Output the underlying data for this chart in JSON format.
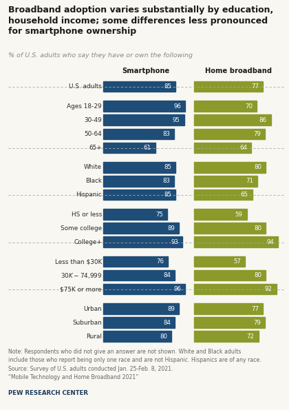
{
  "title": "Broadband adoption varies substantially by education,\nhousehold income; some differences less pronounced\nfor smartphone ownership",
  "subtitle": "% of U.S. adults who say they have or own the following",
  "col_labels": [
    "Smartphone",
    "Home broadband"
  ],
  "note": "Note: Respondents who did not give an answer are not shown. White and Black adults\ninclude those who report being only one race and are not Hispanic. Hispanics are of any race.\nSource: Survey of U.S. adults conducted Jan. 25-Feb. 8, 2021.\n“Mobile Technology and Home Broadband 2021”",
  "source_label": "PEW RESEARCH CENTER",
  "groups": [
    {
      "rows": [
        {
          "category": "U.S. adults",
          "smartphone": 85,
          "broadband": 77
        }
      ]
    },
    {
      "rows": [
        {
          "category": "Ages 18-29",
          "smartphone": 96,
          "broadband": 70
        },
        {
          "category": "30-49",
          "smartphone": 95,
          "broadband": 86
        },
        {
          "category": "50-64",
          "smartphone": 83,
          "broadband": 79
        },
        {
          "category": "65+",
          "smartphone": 61,
          "broadband": 64
        }
      ]
    },
    {
      "rows": [
        {
          "category": "White",
          "smartphone": 85,
          "broadband": 80
        },
        {
          "category": "Black",
          "smartphone": 83,
          "broadband": 71
        },
        {
          "category": "Hispanic",
          "smartphone": 85,
          "broadband": 65
        }
      ]
    },
    {
      "rows": [
        {
          "category": "HS or less",
          "smartphone": 75,
          "broadband": 59
        },
        {
          "category": "Some college",
          "smartphone": 89,
          "broadband": 80
        },
        {
          "category": "College+",
          "smartphone": 93,
          "broadband": 94
        }
      ]
    },
    {
      "rows": [
        {
          "category": "Less than $30K",
          "smartphone": 76,
          "broadband": 57
        },
        {
          "category": "$30K-$74,999",
          "smartphone": 84,
          "broadband": 80
        },
        {
          "category": "$75K or more",
          "smartphone": 96,
          "broadband": 92
        }
      ]
    },
    {
      "rows": [
        {
          "category": "Urban",
          "smartphone": 89,
          "broadband": 77
        },
        {
          "category": "Suburban",
          "smartphone": 84,
          "broadband": 79
        },
        {
          "category": "Rural",
          "smartphone": 80,
          "broadband": 72
        }
      ]
    }
  ],
  "smartphone_color": "#1e4d78",
  "broadband_color": "#8b9a2a",
  "max_val": 100,
  "background_color": "#f9f7f2",
  "title_color": "#1a1a1a",
  "subtitle_color": "#888888",
  "category_color": "#2a2a2a",
  "note_color": "#666666",
  "separator_color": "#aaaaaa",
  "pew_color": "#1a3a5c"
}
